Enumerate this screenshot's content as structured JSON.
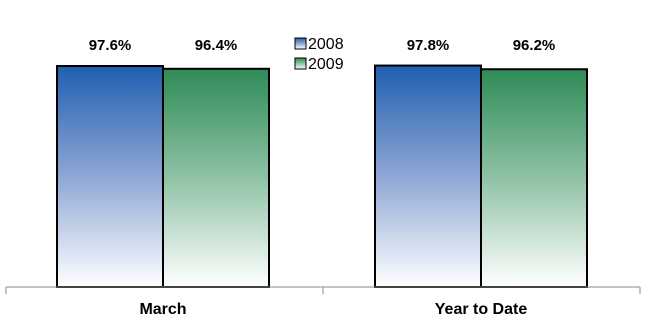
{
  "chart_data": {
    "type": "bar",
    "title": "",
    "xlabel": "",
    "ylabel": "",
    "categories": [
      "March",
      "Year to Date"
    ],
    "series": [
      {
        "name": "2008",
        "values": [
          97.6,
          97.8
        ],
        "labels": [
          "97.6%",
          "97.8%"
        ],
        "color": "#1f5fb0"
      },
      {
        "name": "2009",
        "values": [
          96.4,
          96.2
        ],
        "labels": [
          "96.4%",
          "96.2%"
        ],
        "color": "#2e8b57"
      }
    ],
    "ylim": [
      0,
      100
    ],
    "value_unit": "%",
    "grid": false,
    "legend_position": "top-center"
  }
}
